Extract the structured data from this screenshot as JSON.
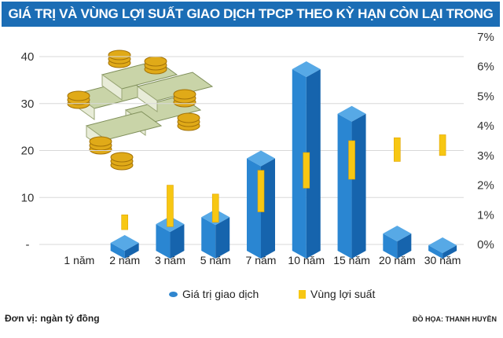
{
  "title": "GIÁ TRỊ VÀ VÙNG LỢI SUẤT GIAO DỊCH TPCP THEO KỲ HẠN CÒN LẠI TRONG THÁNG",
  "footer": {
    "unit": "Đơn vị: ngàn tỷ  đồng",
    "credit": "ĐỒ HỌA: THANH HUYỀN"
  },
  "chart_data": {
    "type": "bar",
    "categories": [
      "1 năm",
      "2 năm",
      "3 năm",
      "5 năm",
      "7 năm",
      "10 năm",
      "15 năm",
      "20 năm",
      "30 năm"
    ],
    "series": [
      {
        "name": "Giá trị giao dịch",
        "axis": "left",
        "values": [
          0,
          2,
          6,
          7.5,
          20,
          39,
          29.5,
          4,
          1.5
        ],
        "color": "#2580cc"
      },
      {
        "name": "Vùng lợi suất",
        "axis": "right",
        "type": "range",
        "low": [
          null,
          0.5,
          0.6,
          0.75,
          1.1,
          1.9,
          2.2,
          2.8,
          3.0
        ],
        "high": [
          null,
          1.0,
          2.0,
          1.7,
          2.5,
          3.1,
          3.5,
          3.6,
          3.7
        ],
        "color": "#f7c713"
      }
    ],
    "left_axis": {
      "ticks": [
        "-",
        "10",
        "20",
        "30",
        "40"
      ],
      "range": [
        0,
        40
      ]
    },
    "right_axis": {
      "ticks": [
        "0%",
        "1%",
        "2%",
        "3%",
        "4%",
        "5%",
        "6%",
        "7%"
      ],
      "range": [
        0,
        7
      ]
    },
    "grid": true,
    "legend": "bottom-center"
  }
}
